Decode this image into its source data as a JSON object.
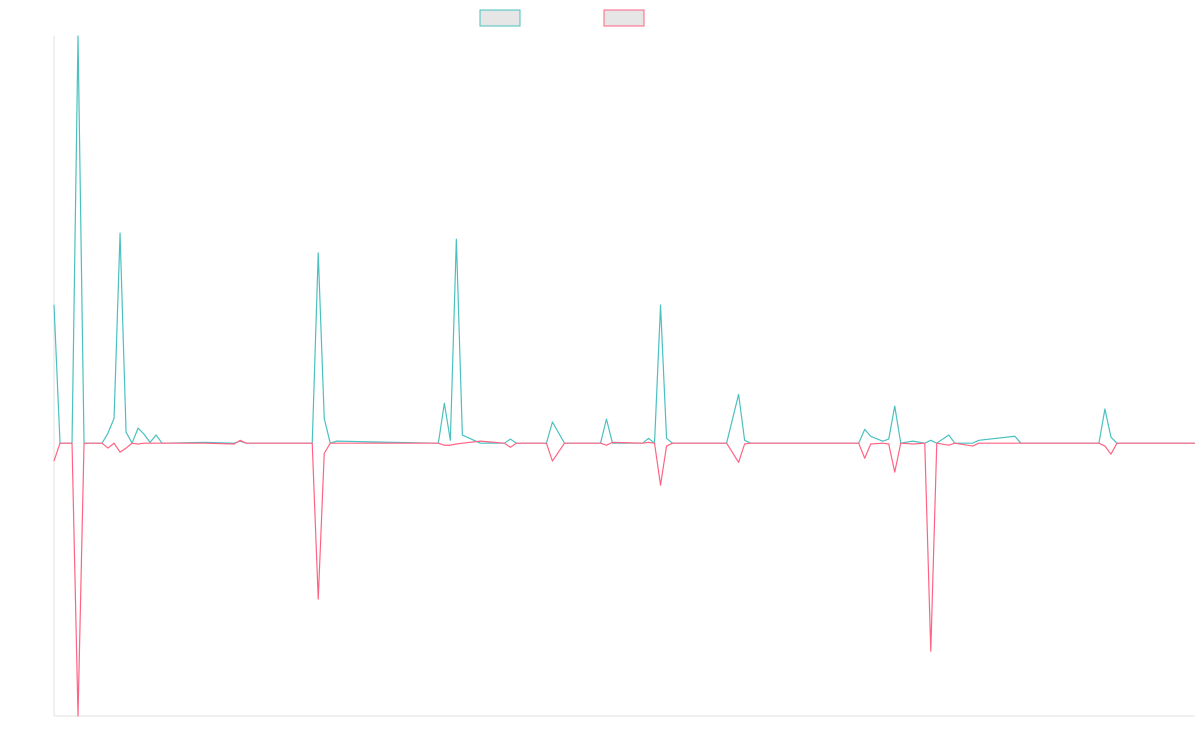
{
  "chart_data": {
    "type": "line",
    "x": [
      0,
      1,
      3,
      4,
      5,
      8,
      9,
      10,
      11,
      12,
      13,
      14,
      15,
      16,
      17,
      18,
      25,
      30,
      31,
      32,
      43,
      44,
      45,
      46,
      47,
      64,
      65,
      66,
      67,
      68,
      71,
      75,
      76,
      77,
      82,
      83,
      85,
      91,
      92,
      93,
      98,
      99,
      100,
      101,
      102,
      103,
      112,
      114,
      115,
      116,
      134,
      135,
      136,
      138,
      139,
      140,
      141,
      143,
      145,
      146,
      147,
      149,
      150,
      153,
      154,
      160,
      161,
      174,
      175,
      176,
      177,
      190
    ],
    "xlim": [
      0,
      190
    ],
    "ylim": [
      -0.67,
      1
    ],
    "series": [
      {
        "color": "#4bc0c0",
        "values": [
          0.34,
          0,
          0,
          1,
          0,
          0,
          0.025,
          0.061,
          0.516,
          0.027,
          0,
          0.037,
          0.022,
          0.002,
          0.02,
          0,
          0.002,
          0,
          0.005,
          0,
          0,
          0.467,
          0.061,
          0,
          0.005,
          0,
          0.098,
          0.007,
          0.501,
          0.02,
          0,
          0,
          0.01,
          0,
          0,
          0.052,
          0,
          0,
          0.059,
          0,
          0,
          0.012,
          0,
          0.339,
          0.012,
          0,
          0,
          0.12,
          0.007,
          0,
          0,
          0.034,
          0.017,
          0.005,
          0.01,
          0.091,
          0,
          0.005,
          0,
          0.007,
          0,
          0.02,
          0,
          0,
          0.007,
          0.017,
          0,
          0,
          0.084,
          0.015,
          0,
          0
        ]
      },
      {
        "color": "#ff6384",
        "values": [
          -0.044,
          0,
          0,
          -0.67,
          0,
          0,
          -0.012,
          0,
          -0.022,
          -0.012,
          0,
          -0.002,
          0,
          0,
          0,
          0,
          0,
          -0.002,
          0.007,
          0,
          0,
          -0.383,
          -0.025,
          0,
          0,
          0,
          -0.005,
          -0.005,
          -0.002,
          0,
          0.005,
          0,
          -0.01,
          0,
          0,
          -0.044,
          0,
          0,
          -0.005,
          0.002,
          0,
          0.002,
          0,
          -0.103,
          -0.007,
          0,
          0,
          -0.047,
          -0.002,
          0,
          0,
          -0.037,
          -0.002,
          0,
          -0.002,
          -0.071,
          0,
          -0.002,
          0,
          -0.511,
          0,
          -0.005,
          0,
          -0.007,
          0,
          0,
          0,
          0,
          -0.007,
          -0.027,
          0,
          0
        ]
      }
    ]
  }
}
